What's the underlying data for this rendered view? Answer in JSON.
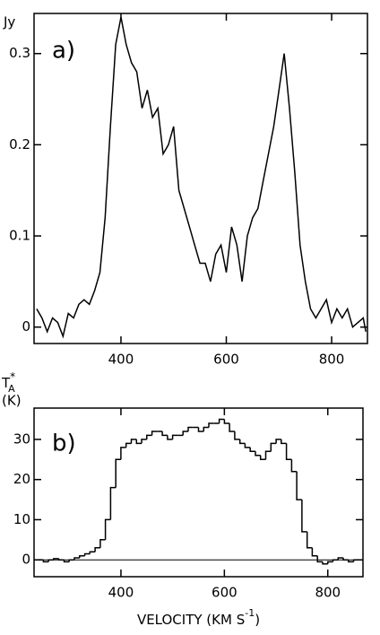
{
  "chart_data": [
    {
      "type": "line",
      "ylabel": "Jy",
      "annotation": "a)",
      "color": "#000000",
      "x": [
        240,
        250,
        260,
        270,
        280,
        290,
        300,
        310,
        320,
        330,
        340,
        350,
        360,
        370,
        380,
        390,
        400,
        410,
        420,
        430,
        440,
        450,
        460,
        470,
        480,
        490,
        500,
        510,
        520,
        530,
        540,
        550,
        560,
        570,
        580,
        590,
        600,
        610,
        620,
        630,
        640,
        650,
        660,
        670,
        680,
        690,
        700,
        710,
        720,
        730,
        740,
        750,
        760,
        770,
        780,
        790,
        800,
        810,
        820,
        830,
        840,
        850,
        860,
        865
      ],
      "values": [
        0.02,
        0.01,
        -0.005,
        0.01,
        0.005,
        -0.01,
        0.015,
        0.01,
        0.025,
        0.03,
        0.025,
        0.04,
        0.06,
        0.12,
        0.22,
        0.31,
        0.34,
        0.31,
        0.29,
        0.28,
        0.24,
        0.26,
        0.23,
        0.24,
        0.19,
        0.2,
        0.22,
        0.15,
        0.13,
        0.11,
        0.09,
        0.07,
        0.07,
        0.05,
        0.08,
        0.09,
        0.06,
        0.11,
        0.09,
        0.05,
        0.1,
        0.12,
        0.13,
        0.16,
        0.19,
        0.22,
        0.26,
        0.3,
        0.24,
        0.17,
        0.09,
        0.05,
        0.02,
        0.01,
        0.02,
        0.03,
        0.005,
        0.02,
        0.01,
        0.02,
        0.0,
        0.005,
        0.01,
        -0.005
      ],
      "xlim": [
        235,
        868
      ],
      "ylim": [
        -0.018,
        0.344
      ],
      "xticks": [
        400,
        600,
        800
      ],
      "yticks": [
        0,
        0.1,
        0.2,
        0.3
      ]
    },
    {
      "type": "histogram",
      "ylabel": {
        "base": "T",
        "sub": "A",
        "sup": "*",
        "unit": "(K)"
      },
      "annotation": "b)",
      "color": "#000000",
      "xlabel": {
        "text": "VELOCITY (KM S",
        "sup": "-1",
        "end": ")"
      },
      "bins": [
        240,
        250,
        260,
        270,
        280,
        290,
        300,
        310,
        320,
        330,
        340,
        350,
        360,
        370,
        380,
        390,
        400,
        410,
        420,
        430,
        440,
        450,
        460,
        470,
        480,
        490,
        500,
        510,
        520,
        530,
        540,
        550,
        560,
        570,
        580,
        590,
        600,
        610,
        620,
        630,
        640,
        650,
        660,
        670,
        680,
        690,
        700,
        710,
        720,
        730,
        740,
        750,
        760,
        770,
        780,
        790,
        800,
        810,
        820,
        830,
        840,
        850,
        860
      ],
      "counts": [
        0,
        -0.5,
        0,
        0.3,
        0,
        -0.5,
        0,
        0.5,
        1,
        1.5,
        2,
        3,
        5,
        10,
        18,
        25,
        28,
        29,
        30,
        29,
        30,
        31,
        32,
        32,
        31,
        30,
        31,
        31,
        32,
        33,
        33,
        32,
        33,
        34,
        34,
        35,
        34,
        32,
        30,
        29,
        28,
        27,
        26,
        25,
        27,
        29,
        30,
        29,
        25,
        22,
        15,
        7,
        3,
        1,
        -0.5,
        -1,
        -0.5,
        0,
        0.5,
        0,
        -0.5,
        0
      ],
      "xlim": [
        232,
        868
      ],
      "ylim": [
        -4.2,
        37.8
      ],
      "xticks": [
        400,
        600,
        800
      ],
      "yticks": [
        0,
        10,
        20,
        30
      ]
    }
  ]
}
